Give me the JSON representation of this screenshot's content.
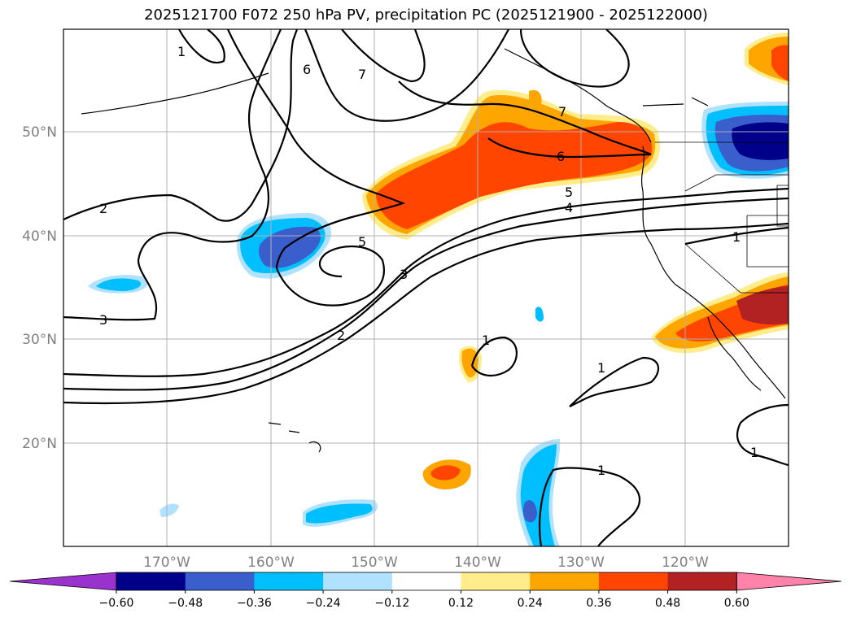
{
  "title": "2025121700 F072 250 hPa PV, precipitation PC (2025121900 - 2025122000)",
  "lat_labels": [
    "50°N",
    "40°N",
    "30°N",
    "20°N"
  ],
  "lon_labels": [
    "170°W",
    "160°W",
    "150°W",
    "140°W",
    "130°W",
    "120°W"
  ],
  "contour_labels": [
    "1",
    "6",
    "7",
    "7",
    "6",
    "5",
    "4",
    "2",
    "5",
    "3",
    "3",
    "2",
    "1",
    "1",
    "1",
    "1",
    "1"
  ],
  "colorbar": {
    "ticks": [
      "−0.60",
      "−0.48",
      "−0.36",
      "−0.24",
      "−0.12",
      "0.12",
      "0.24",
      "0.36",
      "0.48",
      "0.60"
    ],
    "colors": [
      "#9a32cd",
      "#00008b",
      "#3a5fcd",
      "#00bfff",
      "#b0e2ff",
      "#ffffff",
      "#ffec8b",
      "#ffa500",
      "#ff4500",
      "#b22222",
      "#ff82ab"
    ]
  }
}
